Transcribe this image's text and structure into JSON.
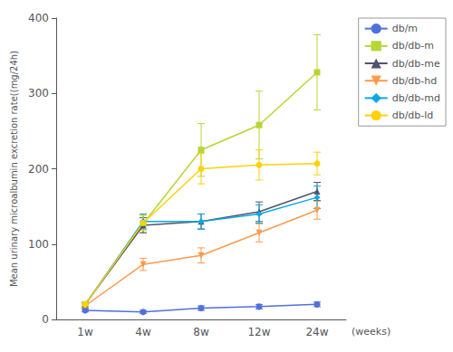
{
  "chart_data": {
    "type": "line",
    "categories": [
      "1w",
      "4w",
      "8w",
      "12w",
      "24w"
    ],
    "ylabel": "Mean urinary microalbumin excretion rate((mg/24h)",
    "xlabel": "(weeks)",
    "ylim": [
      0,
      400
    ],
    "yticks": [
      0,
      100,
      200,
      300,
      400
    ],
    "grid": false,
    "legend": "right",
    "series": [
      {
        "name": "db/m",
        "marker": "circle",
        "values": [
          12,
          10,
          15,
          17,
          20
        ],
        "errors": [
          2,
          2,
          3,
          3,
          3
        ]
      },
      {
        "name": "db/db-m",
        "marker": "square",
        "values": [
          20,
          127,
          225,
          258,
          328
        ],
        "errors": [
          3,
          12,
          35,
          45,
          50
        ]
      },
      {
        "name": "db/db-me",
        "marker": "triangle",
        "values": [
          20,
          125,
          130,
          143,
          170
        ],
        "errors": [
          3,
          10,
          10,
          13,
          12
        ]
      },
      {
        "name": "db/db-hd",
        "marker": "triangle-down",
        "values": [
          18,
          73,
          85,
          115,
          145
        ],
        "errors": [
          3,
          8,
          10,
          12,
          12
        ]
      },
      {
        "name": "db/db-md",
        "marker": "diamond",
        "values": [
          20,
          130,
          130,
          140,
          162
        ],
        "errors": [
          3,
          10,
          10,
          12,
          15
        ]
      },
      {
        "name": "db/db-ld",
        "marker": "circle",
        "values": [
          20,
          128,
          200,
          205,
          207
        ],
        "errors": [
          3,
          10,
          20,
          20,
          15
        ]
      }
    ]
  }
}
